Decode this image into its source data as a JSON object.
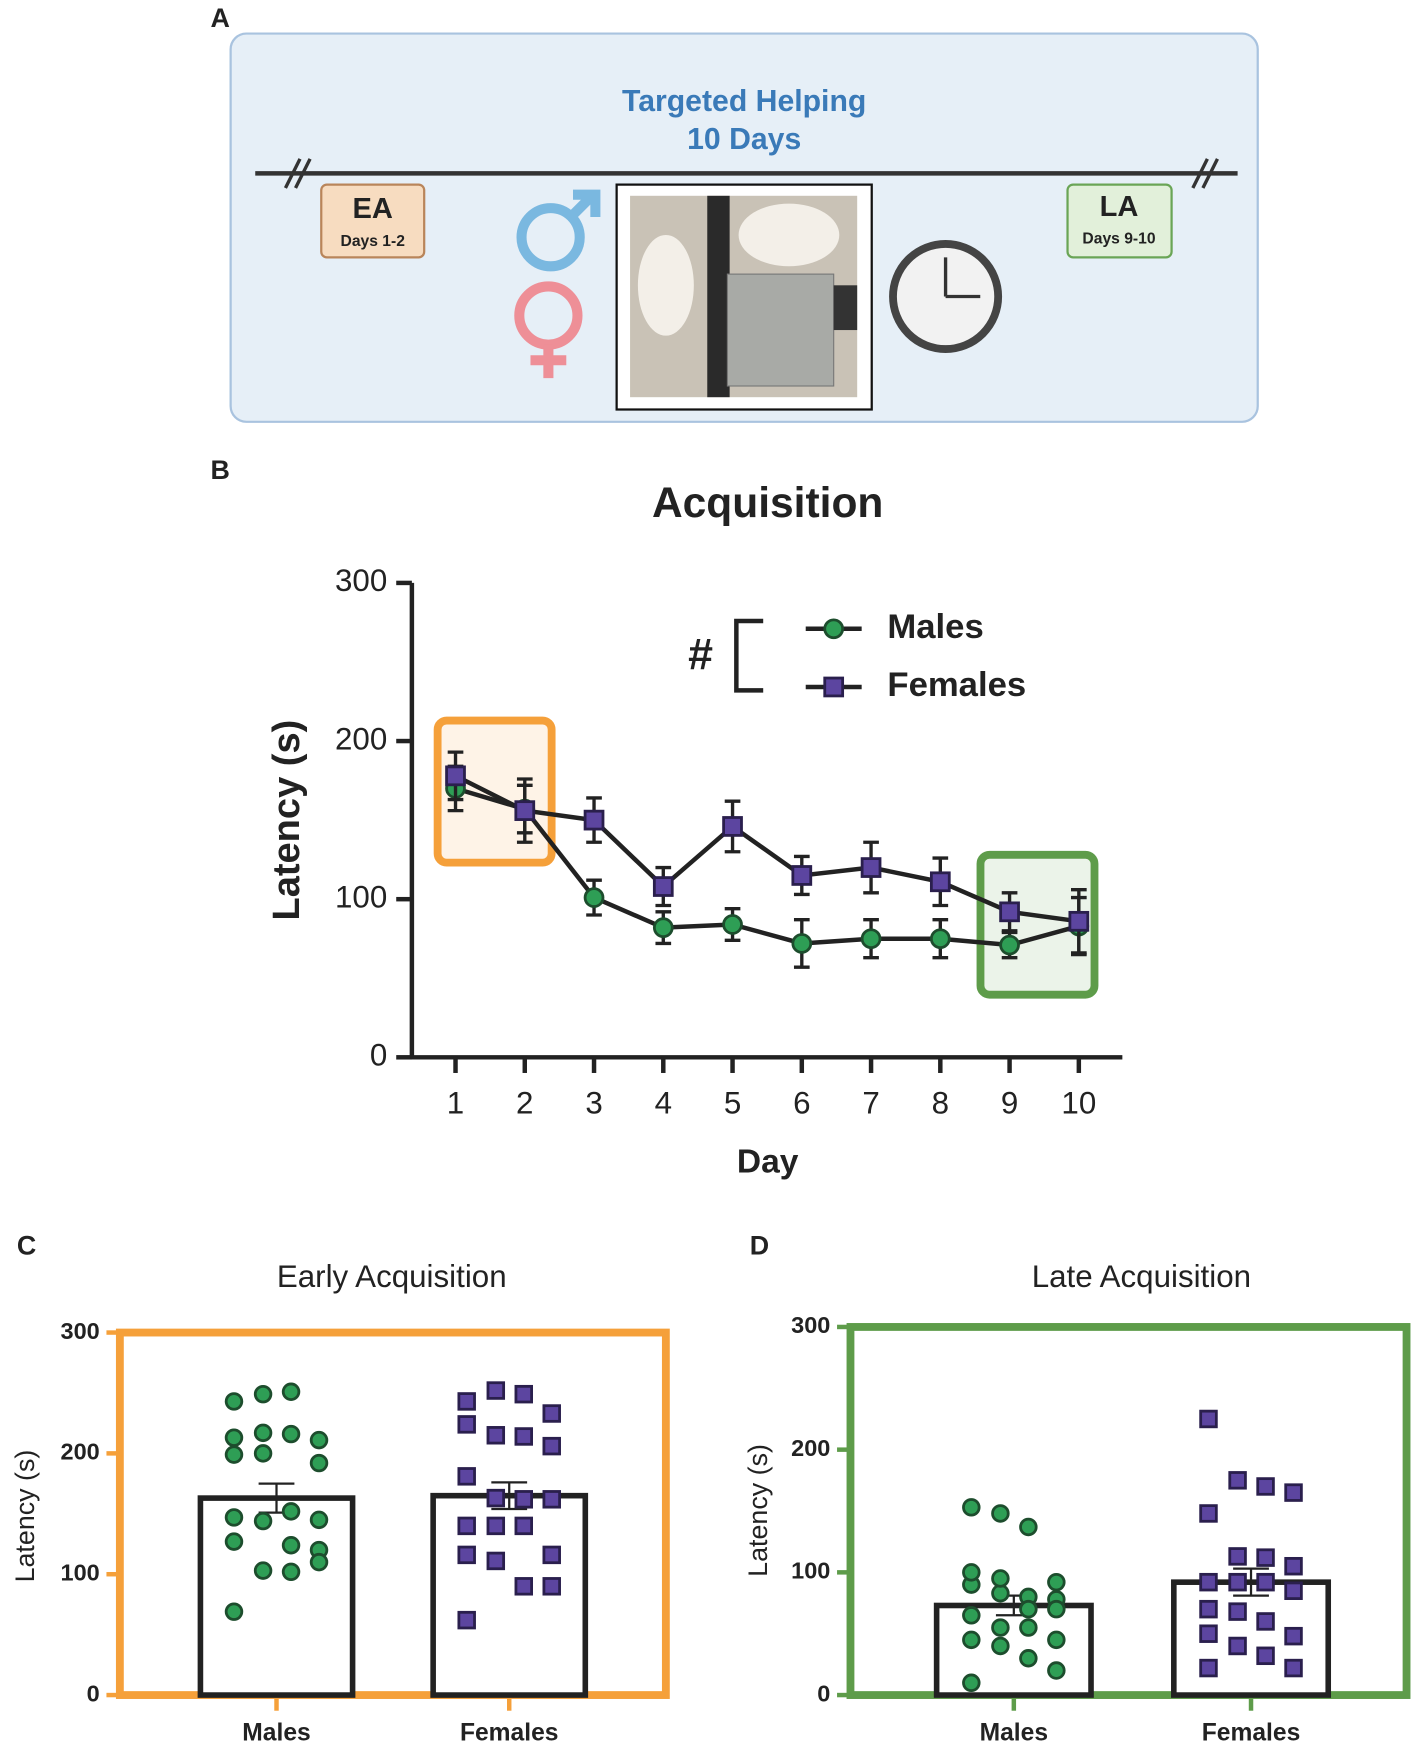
{
  "diagram": {
    "label": "A",
    "title": [
      "Targeted Helping",
      "10 Days"
    ],
    "early": {
      "name": "EA",
      "days": "Days 1-2"
    },
    "late": {
      "name": "LA",
      "days": "Days 9-10"
    }
  },
  "chart_data": [
    {
      "type": "line",
      "panel": "B",
      "title": "Acquisition",
      "xlabel": "Day",
      "ylabel": "Latency (s)",
      "categories": [
        "1",
        "2",
        "3",
        "4",
        "5",
        "6",
        "7",
        "8",
        "9",
        "10"
      ],
      "series": [
        {
          "name": "Males",
          "color": "#2e9e55",
          "marker": "circle",
          "values": [
            170,
            157,
            101,
            82,
            84,
            72,
            75,
            75,
            71,
            83
          ],
          "errors": [
            14,
            15,
            11,
            10,
            10,
            15,
            12,
            12,
            8,
            18
          ]
        },
        {
          "name": "Females",
          "color": "#5c45a0",
          "marker": "square",
          "values": [
            178,
            156,
            150,
            108,
            146,
            115,
            120,
            111,
            92,
            86
          ],
          "errors": [
            15,
            20,
            14,
            12,
            16,
            12,
            16,
            15,
            12,
            20
          ]
        }
      ],
      "annotation": "#",
      "ylim": [
        0,
        300
      ],
      "yticks": [
        0,
        100,
        200,
        300
      ]
    },
    {
      "type": "bar",
      "panel": "C",
      "title": "Early Acquisition",
      "ylabel": "Latency (s)",
      "frame_color": "#f5a03a",
      "categories": [
        "Males",
        "Females"
      ],
      "values": [
        163,
        165
      ],
      "errors": [
        12,
        11
      ],
      "colors": [
        "#2e9e55",
        "#5c45a0"
      ],
      "markers": [
        "circle",
        "square"
      ],
      "points": [
        [
          243,
          249,
          251,
          211,
          213,
          217,
          216,
          192,
          199,
          200,
          152,
          145,
          147,
          144,
          124,
          120,
          127,
          103,
          102,
          110,
          69
        ],
        [
          243,
          252,
          249,
          233,
          224,
          215,
          214,
          206,
          181,
          163,
          162,
          162,
          140,
          140,
          140,
          116,
          116,
          111,
          90,
          90,
          62
        ]
      ],
      "ylim": [
        0,
        300
      ],
      "yticks": [
        0,
        100,
        200,
        300
      ]
    },
    {
      "type": "bar",
      "panel": "D",
      "title": "Late Acquisition",
      "ylabel": "Latency (s)",
      "frame_color": "#5e9c4a",
      "categories": [
        "Males",
        "Females"
      ],
      "values": [
        73,
        92
      ],
      "errors": [
        8,
        11
      ],
      "colors": [
        "#2e9e55",
        "#5c45a0"
      ],
      "markers": [
        "circle",
        "square"
      ],
      "points": [
        [
          153,
          148,
          137,
          92,
          90,
          83,
          80,
          78,
          100,
          95,
          70,
          70,
          65,
          55,
          55,
          45,
          45,
          40,
          30,
          20,
          10
        ],
        [
          225,
          175,
          170,
          165,
          148,
          113,
          112,
          105,
          92,
          92,
          92,
          85,
          70,
          68,
          60,
          48,
          50,
          40,
          32,
          22,
          22
        ]
      ],
      "ylim": [
        0,
        300
      ],
      "yticks": [
        0,
        100,
        200,
        300
      ]
    }
  ]
}
